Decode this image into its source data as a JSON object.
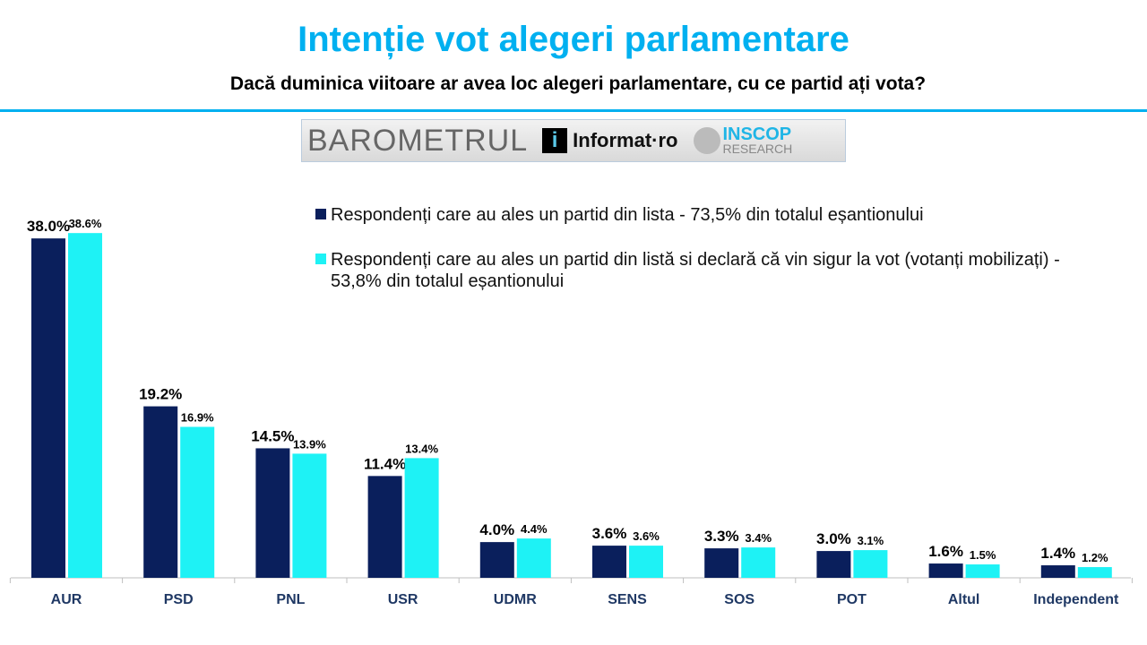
{
  "header": {
    "title": "Intenție vot alegeri parlamentare",
    "subtitle": "Dacă duminica viitoare ar avea loc alegeri parlamentare, cu ce partid ați vota?"
  },
  "logo": {
    "barometrul": "BAROMETRUL",
    "informat": "Informat·ro",
    "inscop": "INSCOP",
    "research": "RESEARCH"
  },
  "colors": {
    "accent": "#00b0f0",
    "series1": "#0a1f5c",
    "series2": "#1ef2f5"
  },
  "chart_data": {
    "type": "bar",
    "categories": [
      "AUR",
      "PSD",
      "PNL",
      "USR",
      "UDMR",
      "SENS",
      "SOS",
      "POT",
      "Altul",
      "Independent"
    ],
    "series": [
      {
        "name": "Respondenți care au ales un partid din lista - 73,5% din totalul eșantionului",
        "values": [
          38.0,
          19.2,
          14.5,
          11.4,
          4.0,
          3.6,
          3.3,
          3.0,
          1.6,
          1.4
        ]
      },
      {
        "name": "Respondenți care au ales un partid din listă si declară că vin sigur la vot (votanți mobilizați) - 53,8% din totalul eșantionului",
        "values": [
          38.6,
          16.9,
          13.9,
          13.4,
          4.4,
          3.6,
          3.4,
          3.1,
          1.5,
          1.2
        ]
      }
    ],
    "ylim": [
      0,
      38.6
    ],
    "grid": false,
    "legend": "top-right",
    "value_format": "%.1f%"
  }
}
